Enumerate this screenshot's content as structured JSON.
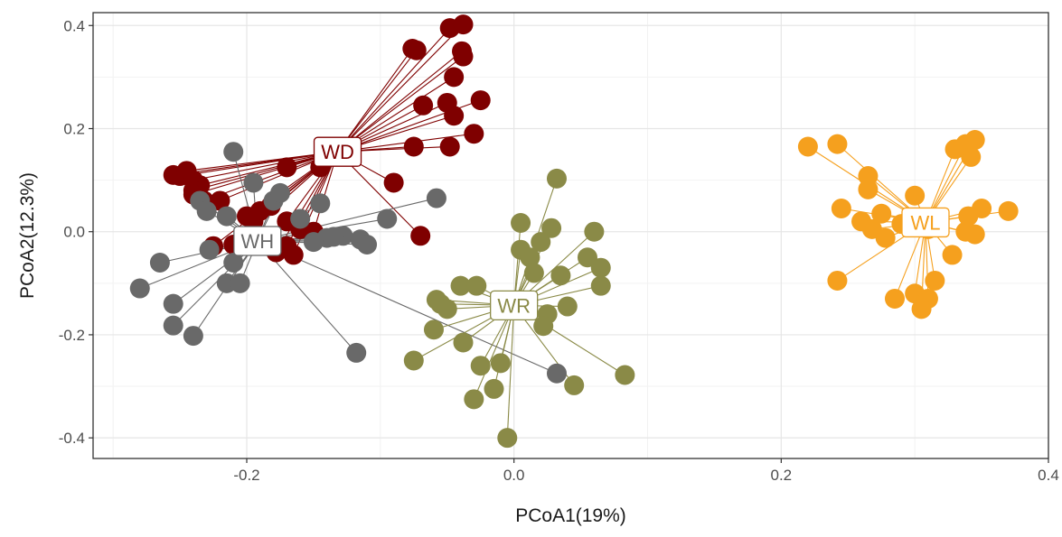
{
  "chart_data": {
    "type": "scatter",
    "title": "",
    "xlabel": "PCoA1(19%)",
    "ylabel": "PCoA2(12.3%)",
    "xlim": [
      -0.315,
      0.4
    ],
    "ylim": [
      -0.44,
      0.425
    ],
    "x_ticks": [
      -0.2,
      0.0,
      0.2,
      0.4
    ],
    "x_tick_labels": [
      "-0.2",
      "0.0",
      "0.2",
      "0.4"
    ],
    "y_ticks": [
      -0.4,
      -0.2,
      0.0,
      0.2,
      0.4
    ],
    "y_tick_labels": [
      "-0.4",
      "-0.2",
      "0.0",
      "0.2",
      "0.4"
    ],
    "grid": true,
    "legend": "none",
    "series": [
      {
        "label": "WD",
        "color": "#7f0000",
        "centroid": [
          -0.132,
          0.155
        ],
        "points": [
          [
            -0.048,
            0.395
          ],
          [
            -0.038,
            0.402
          ],
          [
            -0.076,
            0.355
          ],
          [
            -0.073,
            0.352
          ],
          [
            -0.039,
            0.35
          ],
          [
            -0.038,
            0.34
          ],
          [
            -0.045,
            0.3
          ],
          [
            -0.05,
            0.25
          ],
          [
            -0.025,
            0.255
          ],
          [
            -0.068,
            0.245
          ],
          [
            -0.045,
            0.225
          ],
          [
            -0.03,
            0.19
          ],
          [
            -0.048,
            0.165
          ],
          [
            -0.075,
            0.165
          ],
          [
            -0.09,
            0.095
          ],
          [
            -0.07,
            -0.008
          ],
          [
            -0.145,
            0.125
          ],
          [
            -0.17,
            0.125
          ],
          [
            -0.25,
            0.108
          ],
          [
            -0.255,
            0.11
          ],
          [
            -0.245,
            0.118
          ],
          [
            -0.24,
            0.1
          ],
          [
            -0.235,
            0.09
          ],
          [
            -0.24,
            0.08
          ],
          [
            -0.24,
            0.072
          ],
          [
            -0.232,
            0.06
          ],
          [
            -0.22,
            0.06
          ],
          [
            -0.2,
            0.03
          ],
          [
            -0.19,
            0.04
          ],
          [
            -0.195,
            0.02
          ],
          [
            -0.182,
            0.05
          ],
          [
            -0.17,
            0.02
          ],
          [
            -0.165,
            -0.045
          ],
          [
            -0.178,
            -0.04
          ],
          [
            -0.15,
            0.0
          ],
          [
            -0.16,
            0.005
          ],
          [
            -0.225,
            -0.028
          ],
          [
            -0.21,
            -0.025
          ],
          [
            -0.17,
            -0.028
          ]
        ]
      },
      {
        "label": "WH",
        "color": "#696969",
        "centroid": [
          -0.192,
          -0.018
        ],
        "points": [
          [
            -0.21,
            0.155
          ],
          [
            -0.195,
            0.095
          ],
          [
            -0.18,
            0.06
          ],
          [
            -0.175,
            0.075
          ],
          [
            -0.145,
            0.055
          ],
          [
            -0.16,
            0.025
          ],
          [
            -0.235,
            0.06
          ],
          [
            -0.23,
            0.04
          ],
          [
            -0.215,
            0.03
          ],
          [
            -0.228,
            -0.035
          ],
          [
            -0.21,
            -0.06
          ],
          [
            -0.215,
            -0.1
          ],
          [
            -0.205,
            -0.1
          ],
          [
            -0.265,
            -0.06
          ],
          [
            -0.28,
            -0.11
          ],
          [
            -0.255,
            -0.14
          ],
          [
            -0.255,
            -0.182
          ],
          [
            -0.24,
            -0.202
          ],
          [
            -0.118,
            -0.235
          ],
          [
            -0.128,
            -0.008
          ],
          [
            -0.14,
            -0.012
          ],
          [
            -0.115,
            -0.015
          ],
          [
            -0.11,
            -0.025
          ],
          [
            -0.095,
            0.025
          ],
          [
            -0.058,
            0.065
          ],
          [
            -0.15,
            -0.02
          ],
          [
            -0.135,
            -0.01
          ],
          [
            0.032,
            -0.275
          ]
        ]
      },
      {
        "label": "WR",
        "color": "#8a8a47",
        "centroid": [
          0.0,
          -0.143
        ],
        "points": [
          [
            0.032,
            0.103
          ],
          [
            0.005,
            0.017
          ],
          [
            0.028,
            0.007
          ],
          [
            0.06,
            0.0
          ],
          [
            0.02,
            -0.02
          ],
          [
            0.005,
            -0.035
          ],
          [
            0.012,
            -0.05
          ],
          [
            0.015,
            -0.08
          ],
          [
            0.035,
            -0.085
          ],
          [
            0.055,
            -0.05
          ],
          [
            0.065,
            -0.07
          ],
          [
            0.065,
            -0.105
          ],
          [
            -0.04,
            -0.105
          ],
          [
            -0.028,
            -0.105
          ],
          [
            -0.058,
            -0.132
          ],
          [
            -0.055,
            -0.14
          ],
          [
            -0.05,
            -0.15
          ],
          [
            0.025,
            -0.16
          ],
          [
            0.04,
            -0.145
          ],
          [
            0.022,
            -0.183
          ],
          [
            -0.06,
            -0.19
          ],
          [
            -0.038,
            -0.215
          ],
          [
            -0.075,
            -0.25
          ],
          [
            -0.025,
            -0.26
          ],
          [
            -0.01,
            -0.255
          ],
          [
            -0.015,
            -0.305
          ],
          [
            -0.03,
            -0.325
          ],
          [
            0.045,
            -0.298
          ],
          [
            0.083,
            -0.278
          ],
          [
            -0.005,
            -0.4
          ]
        ]
      },
      {
        "label": "WL",
        "color": "#f5a01e",
        "centroid": [
          0.308,
          0.018
        ],
        "points": [
          [
            0.22,
            0.165
          ],
          [
            0.242,
            0.17
          ],
          [
            0.265,
            0.108
          ],
          [
            0.265,
            0.082
          ],
          [
            0.245,
            0.045
          ],
          [
            0.26,
            0.02
          ],
          [
            0.268,
            0.005
          ],
          [
            0.275,
            0.035
          ],
          [
            0.278,
            -0.012
          ],
          [
            0.29,
            0.015
          ],
          [
            0.3,
            0.07
          ],
          [
            0.305,
            0.02
          ],
          [
            0.31,
            0.005
          ],
          [
            0.33,
            0.16
          ],
          [
            0.338,
            0.17
          ],
          [
            0.345,
            0.178
          ],
          [
            0.342,
            0.145
          ],
          [
            0.34,
            0.03
          ],
          [
            0.35,
            0.045
          ],
          [
            0.37,
            0.04
          ],
          [
            0.338,
            0.0
          ],
          [
            0.345,
            -0.005
          ],
          [
            0.328,
            -0.045
          ],
          [
            0.242,
            -0.095
          ],
          [
            0.285,
            -0.13
          ],
          [
            0.3,
            -0.12
          ],
          [
            0.31,
            -0.13
          ],
          [
            0.315,
            -0.095
          ],
          [
            0.305,
            -0.15
          ]
        ]
      }
    ]
  }
}
